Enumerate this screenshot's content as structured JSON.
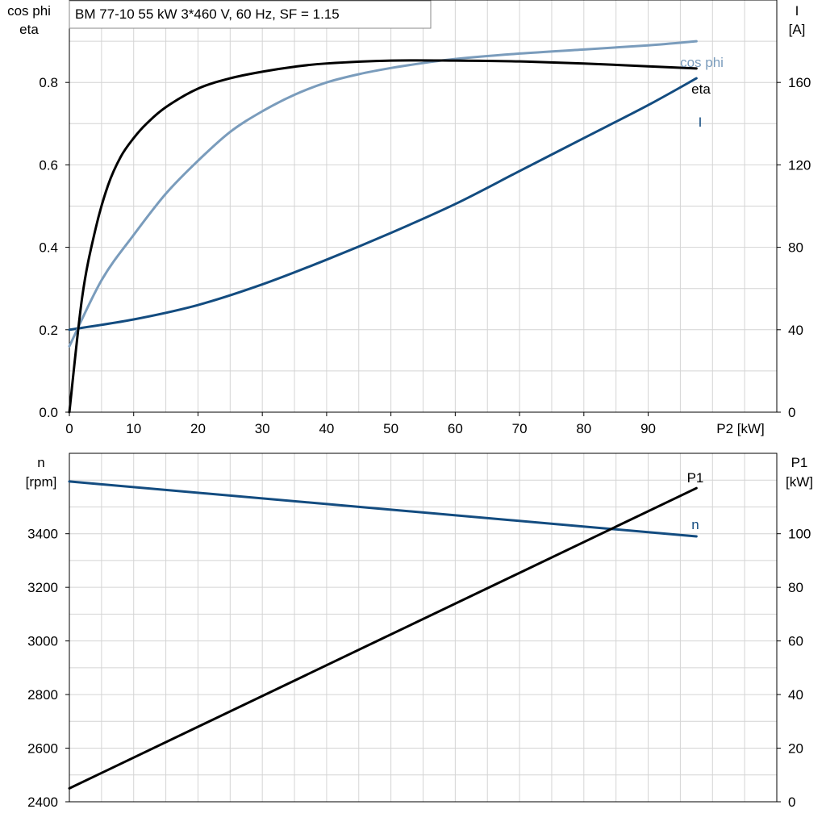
{
  "title": "BM 77-10   55 kW   3*460 V, 60 Hz, SF = 1.15",
  "colors": {
    "background": "#ffffff",
    "grid": "#d4d4d4",
    "eta": "#000000",
    "cos_phi": "#7a9cbc",
    "current": "#134c80",
    "n": "#134c80",
    "p1": "#000000"
  },
  "chart_data": [
    {
      "type": "line",
      "title": "BM 77-10   55 kW   3*460 V, 60 Hz, SF = 1.15",
      "xlabel": "P2 [kW]",
      "ylabel_left": [
        "cos phi",
        "eta"
      ],
      "ylabel_right": [
        "I",
        "[A]"
      ],
      "xlim": [
        0,
        110
      ],
      "ylim_left": [
        0,
        1.0
      ],
      "ylim_right": [
        0,
        200
      ],
      "x_ticks": [
        "0",
        "10",
        "20",
        "30",
        "40",
        "50",
        "60",
        "70",
        "80",
        "90"
      ],
      "y_ticks_left": [
        "0.0",
        "0.2",
        "0.4",
        "0.6",
        "0.8"
      ],
      "y_ticks_right": [
        "0",
        "40",
        "80",
        "120",
        "160"
      ],
      "grid": true,
      "series": [
        {
          "name": "eta",
          "axis": "left",
          "color": "#000000",
          "x": [
            0,
            2,
            4,
            6,
            8,
            10,
            12,
            15,
            20,
            25,
            30,
            35,
            40,
            50,
            60,
            70,
            80,
            90,
            97.5
          ],
          "y": [
            0.0,
            0.28,
            0.44,
            0.55,
            0.62,
            0.665,
            0.7,
            0.74,
            0.785,
            0.81,
            0.826,
            0.838,
            0.846,
            0.853,
            0.853,
            0.851,
            0.846,
            0.839,
            0.834
          ]
        },
        {
          "name": "cos phi",
          "axis": "left",
          "color": "#7a9cbc",
          "x": [
            0,
            5,
            10,
            15,
            20,
            25,
            30,
            35,
            40,
            45,
            50,
            55,
            60,
            70,
            80,
            90,
            97.5
          ],
          "y": [
            0.16,
            0.32,
            0.43,
            0.53,
            0.61,
            0.68,
            0.73,
            0.77,
            0.8,
            0.82,
            0.835,
            0.847,
            0.857,
            0.87,
            0.88,
            0.89,
            0.9
          ]
        },
        {
          "name": "I",
          "axis": "right",
          "color": "#134c80",
          "x": [
            0,
            10,
            20,
            30,
            40,
            50,
            60,
            70,
            80,
            90,
            97.5
          ],
          "y": [
            40,
            45,
            52,
            62,
            74,
            87,
            101,
            117,
            133,
            149,
            162
          ]
        }
      ]
    },
    {
      "type": "line",
      "xlabel": "",
      "ylabel_left": [
        "n",
        "[rpm]"
      ],
      "ylabel_right": [
        "P1",
        "[kW]"
      ],
      "xlim": [
        0,
        110
      ],
      "ylim_left": [
        2400,
        3700
      ],
      "ylim_right": [
        0,
        130
      ],
      "y_ticks_left": [
        "2400",
        "2600",
        "2800",
        "3000",
        "3200",
        "3400"
      ],
      "y_ticks_right": [
        "0",
        "20",
        "40",
        "60",
        "80",
        "100"
      ],
      "grid": true,
      "series": [
        {
          "name": "n",
          "axis": "left",
          "color": "#134c80",
          "x": [
            0,
            97.5
          ],
          "y": [
            3595,
            3390
          ]
        },
        {
          "name": "P1",
          "axis": "right",
          "color": "#000000",
          "x": [
            0,
            97.5
          ],
          "y": [
            5,
            117
          ]
        }
      ]
    }
  ]
}
